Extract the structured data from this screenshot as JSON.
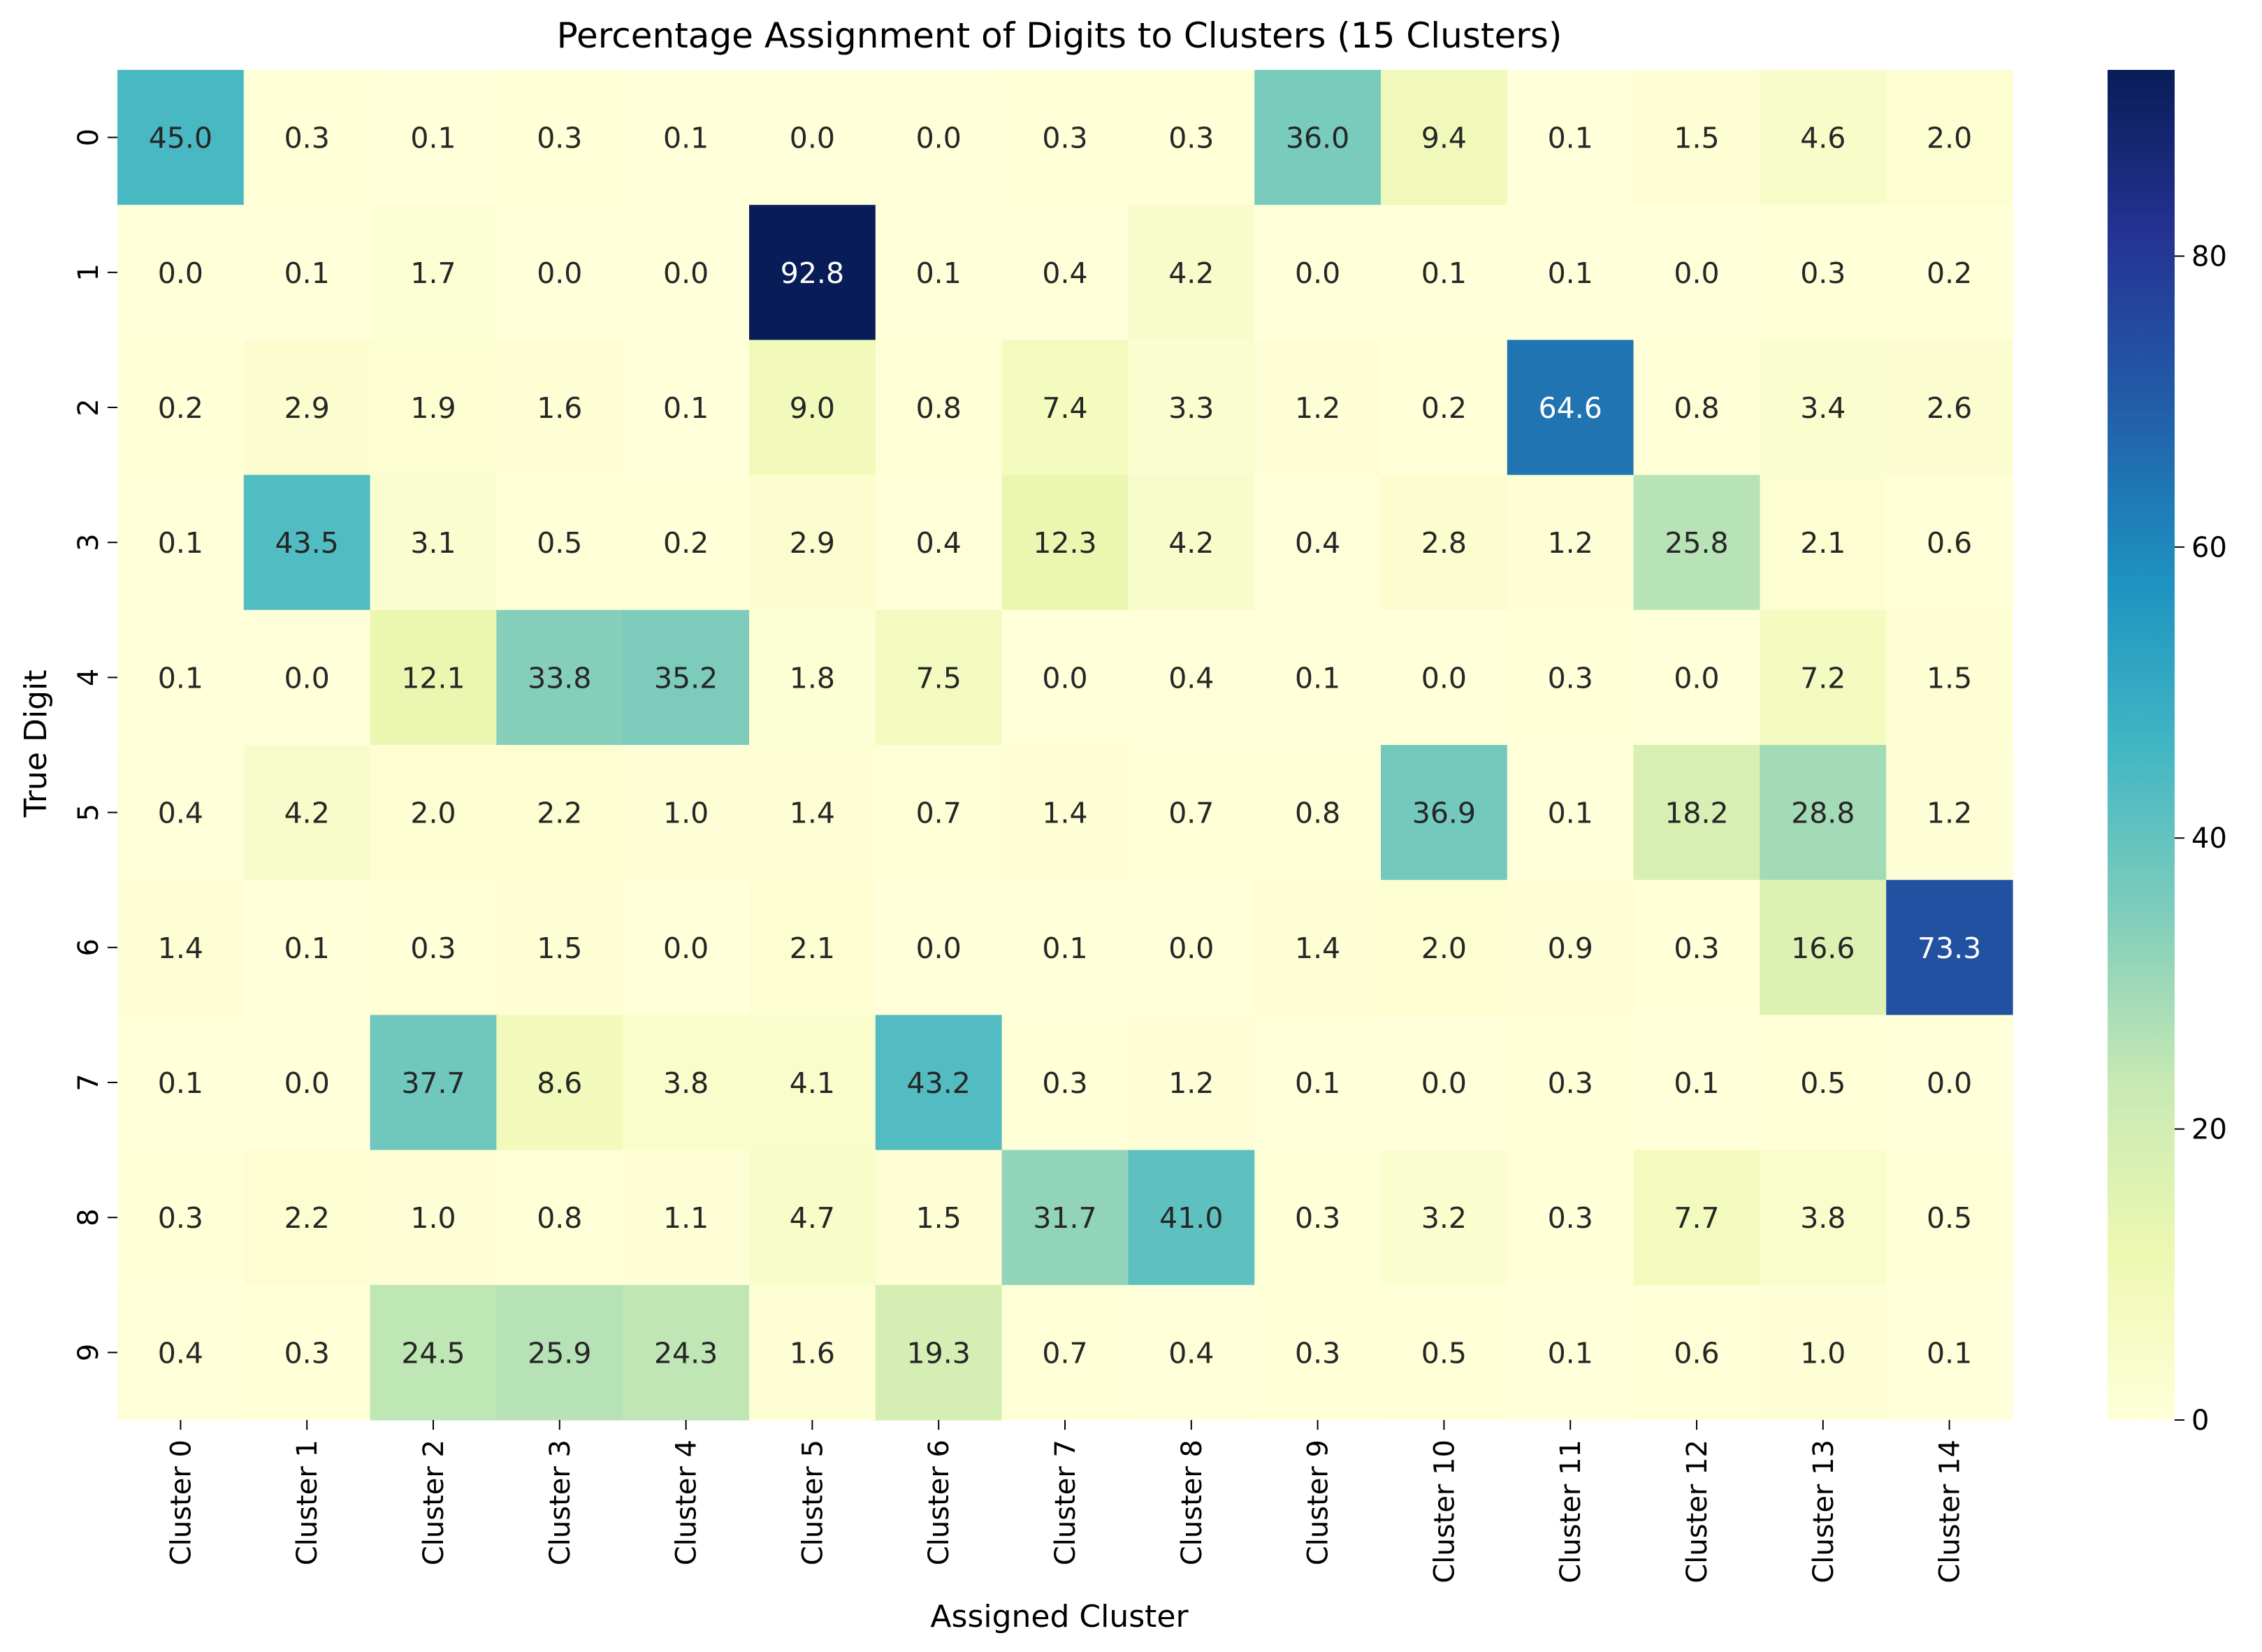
{
  "chart_data": {
    "type": "heatmap",
    "title": "Percentage Assignment of Digits to Clusters (15 Clusters)",
    "xlabel": "Assigned Cluster",
    "ylabel": "True Digit",
    "x_categories": [
      "Cluster 0",
      "Cluster 1",
      "Cluster 2",
      "Cluster 3",
      "Cluster 4",
      "Cluster 5",
      "Cluster 6",
      "Cluster 7",
      "Cluster 8",
      "Cluster 9",
      "Cluster 10",
      "Cluster 11",
      "Cluster 12",
      "Cluster 13",
      "Cluster 14"
    ],
    "y_categories": [
      "0",
      "1",
      "2",
      "3",
      "4",
      "5",
      "6",
      "7",
      "8",
      "9"
    ],
    "values": [
      [
        45.0,
        0.3,
        0.1,
        0.3,
        0.1,
        0.0,
        0.0,
        0.3,
        0.3,
        36.0,
        9.4,
        0.1,
        1.5,
        4.6,
        2.0
      ],
      [
        0.0,
        0.1,
        1.7,
        0.0,
        0.0,
        92.8,
        0.1,
        0.4,
        4.2,
        0.0,
        0.1,
        0.1,
        0.0,
        0.3,
        0.2
      ],
      [
        0.2,
        2.9,
        1.9,
        1.6,
        0.1,
        9.0,
        0.8,
        7.4,
        3.3,
        1.2,
        0.2,
        64.6,
        0.8,
        3.4,
        2.6
      ],
      [
        0.1,
        43.5,
        3.1,
        0.5,
        0.2,
        2.9,
        0.4,
        12.3,
        4.2,
        0.4,
        2.8,
        1.2,
        25.8,
        2.1,
        0.6
      ],
      [
        0.1,
        0.0,
        12.1,
        33.8,
        35.2,
        1.8,
        7.5,
        0.0,
        0.4,
        0.1,
        0.0,
        0.3,
        0.0,
        7.2,
        1.5
      ],
      [
        0.4,
        4.2,
        2.0,
        2.2,
        1.0,
        1.4,
        0.7,
        1.4,
        0.7,
        0.8,
        36.9,
        0.1,
        18.2,
        28.8,
        1.2
      ],
      [
        1.4,
        0.1,
        0.3,
        1.5,
        0.0,
        2.1,
        0.0,
        0.1,
        0.0,
        1.4,
        2.0,
        0.9,
        0.3,
        16.6,
        73.3
      ],
      [
        0.1,
        0.0,
        37.7,
        8.6,
        3.8,
        4.1,
        43.2,
        0.3,
        1.2,
        0.1,
        0.0,
        0.3,
        0.1,
        0.5,
        0.0
      ],
      [
        0.3,
        2.2,
        1.0,
        0.8,
        1.1,
        4.7,
        1.5,
        31.7,
        41.0,
        0.3,
        3.2,
        0.3,
        7.7,
        3.8,
        0.5
      ],
      [
        0.4,
        0.3,
        24.5,
        25.9,
        24.3,
        1.6,
        19.3,
        0.7,
        0.4,
        0.3,
        0.5,
        0.1,
        0.6,
        1.0,
        0.1
      ]
    ],
    "value_format": "0.1f",
    "colormap": "YlGnBu",
    "color_range": [
      0,
      92.8
    ],
    "colorbar_ticks": [
      0,
      20,
      40,
      60,
      80
    ],
    "grid": false
  }
}
